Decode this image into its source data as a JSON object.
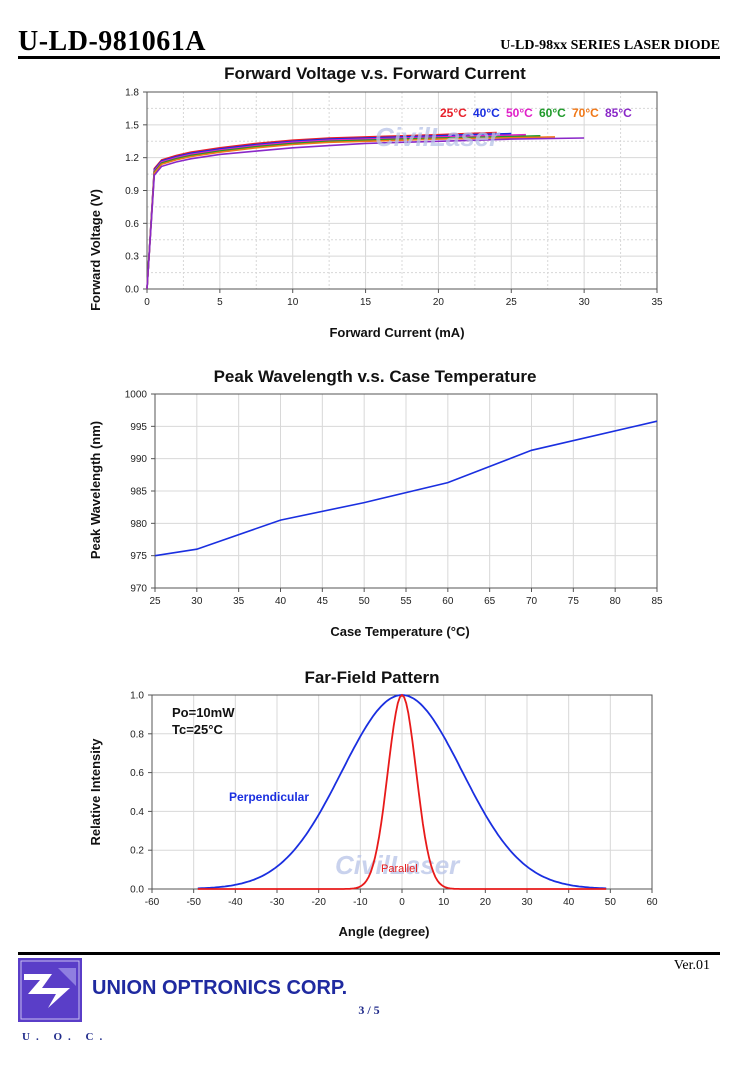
{
  "header": {
    "doc_title": "U-LD-981061A",
    "series_title": "U-LD-98xx SERIES LASER DIODE"
  },
  "footer": {
    "version": "Ver.01",
    "page": "3 / 5",
    "company": "UNION OPTRONICS CORP.",
    "logo_text": "U. O. C."
  },
  "watermark": "CivilLaser",
  "chart_data": [
    {
      "type": "line",
      "title": "Forward Voltage v.s. Forward Current",
      "xlabel": "Forward Current (mA)",
      "ylabel": "Forward Voltage (V)",
      "xlim": [
        0,
        35
      ],
      "ylim": [
        0.0,
        1.8
      ],
      "xticks": [
        "0",
        "5",
        "10",
        "15",
        "20",
        "25",
        "30",
        "35"
      ],
      "yticks": [
        "0.0",
        "0.3",
        "0.6",
        "0.9",
        "1.2",
        "1.5",
        "1.8"
      ],
      "legend_position": "top-right",
      "series": [
        {
          "name": "25°C",
          "color": "#e8202a",
          "x": [
            0,
            0.5,
            1,
            2,
            3,
            5,
            7.5,
            10,
            12.5,
            15,
            17.5,
            20,
            22,
            24
          ],
          "y": [
            0,
            1.1,
            1.18,
            1.22,
            1.25,
            1.29,
            1.33,
            1.36,
            1.38,
            1.39,
            1.4,
            1.41,
            1.42,
            1.43
          ]
        },
        {
          "name": "40°C",
          "color": "#1a2fe0",
          "x": [
            0,
            0.5,
            1,
            2,
            3,
            5,
            7.5,
            10,
            12.5,
            15,
            17.5,
            20,
            22,
            25
          ],
          "y": [
            0,
            1.09,
            1.17,
            1.21,
            1.24,
            1.28,
            1.32,
            1.35,
            1.37,
            1.38,
            1.39,
            1.4,
            1.41,
            1.42
          ]
        },
        {
          "name": "50°C",
          "color": "#e020c8",
          "x": [
            0,
            0.5,
            1,
            2,
            3,
            5,
            7.5,
            10,
            12.5,
            15,
            17.5,
            20,
            23,
            26
          ],
          "y": [
            0,
            1.08,
            1.16,
            1.2,
            1.23,
            1.27,
            1.31,
            1.34,
            1.36,
            1.37,
            1.38,
            1.39,
            1.4,
            1.41
          ]
        },
        {
          "name": "60°C",
          "color": "#1f9a2a",
          "x": [
            0,
            0.5,
            1,
            2,
            3,
            5,
            7.5,
            10,
            12.5,
            15,
            17.5,
            20,
            24,
            27
          ],
          "y": [
            0,
            1.07,
            1.15,
            1.19,
            1.22,
            1.26,
            1.3,
            1.33,
            1.35,
            1.36,
            1.37,
            1.38,
            1.39,
            1.4
          ]
        },
        {
          "name": "70°C",
          "color": "#f07818",
          "x": [
            0,
            0.5,
            1,
            2,
            3,
            5,
            7.5,
            10,
            12.5,
            15,
            17.5,
            20,
            24,
            28
          ],
          "y": [
            0,
            1.06,
            1.14,
            1.18,
            1.21,
            1.25,
            1.29,
            1.32,
            1.34,
            1.35,
            1.36,
            1.37,
            1.38,
            1.39
          ]
        },
        {
          "name": "85°C",
          "color": "#8a28c8",
          "x": [
            0,
            0.5,
            1,
            2,
            3,
            5,
            7.5,
            10,
            12.5,
            15,
            17.5,
            20,
            25,
            30
          ],
          "y": [
            0,
            1.04,
            1.12,
            1.16,
            1.19,
            1.23,
            1.26,
            1.29,
            1.31,
            1.33,
            1.34,
            1.35,
            1.37,
            1.38
          ]
        }
      ]
    },
    {
      "type": "line",
      "title": "Peak Wavelength v.s. Case Temperature",
      "xlabel": "Case Temperature (°C)",
      "ylabel": "Peak Wavelength (nm)",
      "xlim": [
        25,
        85
      ],
      "ylim": [
        970,
        1000
      ],
      "xticks": [
        "25",
        "30",
        "35",
        "40",
        "45",
        "50",
        "55",
        "60",
        "65",
        "70",
        "75",
        "80",
        "85"
      ],
      "yticks": [
        "970",
        "975",
        "980",
        "985",
        "990",
        "995",
        "1000"
      ],
      "series": [
        {
          "color": "#1a2fe0",
          "x": [
            25,
            30,
            40,
            50,
            60,
            70,
            85
          ],
          "y": [
            975.0,
            976.0,
            980.5,
            983.2,
            986.3,
            991.3,
            995.8
          ]
        }
      ]
    },
    {
      "type": "line",
      "title": "Far-Field Pattern",
      "xlabel": "Angle (degree)",
      "ylabel": "Relative Intensity",
      "xlim": [
        -60,
        60
      ],
      "ylim": [
        0.0,
        1.0
      ],
      "xticks": [
        "-60",
        "-50",
        "-40",
        "-30",
        "-20",
        "-10",
        "0",
        "10",
        "20",
        "30",
        "40",
        "50",
        "60"
      ],
      "yticks": [
        "0.0",
        "0.2",
        "0.4",
        "0.6",
        "0.8",
        "1.0"
      ],
      "annotations": [
        "Po=10mW",
        "Tc=25°C"
      ],
      "series": [
        {
          "name": "Perpendicular",
          "color": "#1a2fe0",
          "fwhm_deg": 34,
          "peak": 1.0,
          "range": [
            -49,
            49
          ]
        },
        {
          "name": "Parallel",
          "color": "#e81a1a",
          "fwhm_deg": 8,
          "peak": 1.0,
          "range": [
            -49,
            49
          ]
        }
      ]
    }
  ]
}
